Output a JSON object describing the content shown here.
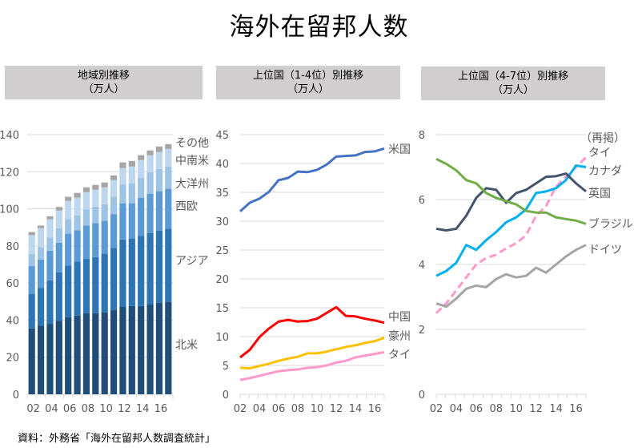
{
  "title": "海外在留邦人数",
  "source": "資料：外務省「海外在留邦人数調査統計」",
  "panels": [
    {
      "line1": "地域別推移",
      "line2": "（万人）"
    },
    {
      "line1": "上位国（1-4位）別推移",
      "line2": "（万人）"
    },
    {
      "line1": "上位国（4-7位）別推移",
      "line2": "（万人）"
    }
  ],
  "chart_data": [
    {
      "type": "bar",
      "stacked": true,
      "title": "地域別推移（万人）",
      "categories": [
        "02",
        "03",
        "04",
        "05",
        "06",
        "07",
        "08",
        "09",
        "10",
        "11",
        "12",
        "13",
        "14",
        "15",
        "16",
        "17"
      ],
      "xtick_labels": [
        "02",
        "04",
        "06",
        "08",
        "10",
        "12",
        "14",
        "16"
      ],
      "ylim": [
        0,
        140
      ],
      "yticks": [
        0,
        20,
        40,
        60,
        80,
        100,
        120,
        140
      ],
      "grid": true,
      "legend_placement": "right (direct labels)",
      "series": [
        {
          "name": "北米",
          "color": "#1f4e79",
          "values": [
            35.5,
            37.1,
            38.0,
            39.7,
            41.5,
            42.4,
            43.7,
            43.7,
            44.1,
            45.4,
            47.1,
            47.6,
            47.6,
            48.4,
            49.3,
            49.7
          ]
        },
        {
          "name": "アジア",
          "color": "#2e75b6",
          "values": [
            18.5,
            20.3,
            23.4,
            26.0,
            28.0,
            29.1,
            29.3,
            30.3,
            31.7,
            33.6,
            36.4,
            36.4,
            37.9,
            38.6,
            39.0,
            39.5
          ]
        },
        {
          "name": "西欧",
          "color": "#5b9bd5",
          "values": [
            15.1,
            15.3,
            16.0,
            16.0,
            17.1,
            16.9,
            18.0,
            18.3,
            17.8,
            18.0,
            19.5,
            19.0,
            20.5,
            21.2,
            21.2,
            21.6
          ]
        },
        {
          "name": "大洋州",
          "color": "#9dc3e6",
          "values": [
            6.6,
            6.6,
            7.1,
            7.9,
            7.8,
            8.1,
            8.6,
            8.9,
            8.9,
            9.5,
            10.0,
            10.8,
            10.8,
            11.6,
            12.0,
            12.0
          ]
        },
        {
          "name": "中南米",
          "color": "#bdd7ee",
          "values": [
            10.1,
            10.3,
            9.9,
            9.5,
            9.9,
            9.5,
            9.4,
            9.1,
            9.1,
            9.0,
            9.0,
            9.0,
            9.5,
            9.1,
            9.1,
            9.5
          ]
        },
        {
          "name": "その他",
          "color": "#a5a5a5",
          "values": [
            1.7,
            1.4,
            1.6,
            1.9,
            2.2,
            2.6,
            2.6,
            2.6,
            2.6,
            2.5,
            3.0,
            3.0,
            2.6,
            2.6,
            3.0,
            2.6
          ]
        }
      ]
    },
    {
      "type": "line",
      "title": "上位国（1-4位）別推移（万人）",
      "x": [
        "02",
        "03",
        "04",
        "05",
        "06",
        "07",
        "08",
        "09",
        "10",
        "11",
        "12",
        "13",
        "14",
        "15",
        "16",
        "17"
      ],
      "xtick_labels": [
        "02",
        "04",
        "06",
        "08",
        "10",
        "12",
        "14",
        "16"
      ],
      "ylim": [
        0,
        45
      ],
      "yticks": [
        0,
        5,
        10,
        15,
        20,
        25,
        30,
        35,
        40,
        45
      ],
      "grid": true,
      "legend_placement": "right (direct labels)",
      "series": [
        {
          "name": "米国",
          "color": "#4472c4",
          "dashed": false,
          "values": [
            31.7,
            33.2,
            33.9,
            35.1,
            37.1,
            37.5,
            38.6,
            38.5,
            38.9,
            39.8,
            41.2,
            41.3,
            41.4,
            42.0,
            42.1,
            42.6
          ]
        },
        {
          "name": "中国",
          "color": "#ff0000",
          "dashed": false,
          "values": [
            6.4,
            7.7,
            9.9,
            11.4,
            12.6,
            12.9,
            12.6,
            12.7,
            13.1,
            14.1,
            15.1,
            13.6,
            13.5,
            13.1,
            12.8,
            12.4
          ]
        },
        {
          "name": "豪州",
          "color": "#ffc000",
          "dashed": false,
          "values": [
            4.6,
            4.5,
            4.9,
            5.3,
            5.8,
            6.2,
            6.5,
            7.1,
            7.1,
            7.4,
            7.8,
            8.2,
            8.5,
            8.9,
            9.2,
            9.8
          ]
        },
        {
          "name": "タイ",
          "color": "#ff99cc",
          "dashed": false,
          "values": [
            2.5,
            2.8,
            3.2,
            3.6,
            4.0,
            4.2,
            4.3,
            4.6,
            4.7,
            5.0,
            5.5,
            5.8,
            6.4,
            6.7,
            7.0,
            7.3
          ]
        }
      ]
    },
    {
      "type": "line",
      "title": "上位国（4-7位）別推移（万人）",
      "x": [
        "02",
        "03",
        "04",
        "05",
        "06",
        "07",
        "08",
        "09",
        "10",
        "11",
        "12",
        "13",
        "14",
        "15",
        "16",
        "17"
      ],
      "xtick_labels": [
        "02",
        "04",
        "06",
        "08",
        "10",
        "12",
        "14",
        "16"
      ],
      "ylim": [
        0,
        8
      ],
      "yticks": [
        0,
        2,
        4,
        6,
        8
      ],
      "grid": true,
      "legend_placement": "right (direct labels)",
      "annotation": "（再掲）",
      "series": [
        {
          "name": "タイ",
          "label_prefix": "（再掲）",
          "color": "#ff99cc",
          "dashed": true,
          "values": [
            2.5,
            2.8,
            3.2,
            3.6,
            4.0,
            4.2,
            4.3,
            4.5,
            4.65,
            4.9,
            5.5,
            5.8,
            6.4,
            6.7,
            7.0,
            7.3
          ]
        },
        {
          "name": "カナダ",
          "color": "#00b0f0",
          "dashed": false,
          "values": [
            3.65,
            3.8,
            4.05,
            4.6,
            4.45,
            4.75,
            5.0,
            5.3,
            5.45,
            5.7,
            6.2,
            6.25,
            6.35,
            6.6,
            7.05,
            7.0
          ]
        },
        {
          "name": "英国",
          "color": "#44546a",
          "dashed": false,
          "values": [
            5.1,
            5.05,
            5.1,
            5.5,
            6.05,
            6.35,
            6.3,
            5.9,
            6.2,
            6.3,
            6.5,
            6.7,
            6.72,
            6.8,
            6.5,
            6.25
          ]
        },
        {
          "name": "ブラジル",
          "color": "#70ad47",
          "dashed": false,
          "values": [
            7.25,
            7.1,
            6.9,
            6.6,
            6.5,
            6.2,
            6.05,
            5.95,
            5.85,
            5.65,
            5.6,
            5.6,
            5.45,
            5.4,
            5.35,
            5.25
          ]
        },
        {
          "name": "ドイツ",
          "color": "#a5a5a5",
          "dashed": false,
          "values": [
            2.8,
            2.7,
            2.95,
            3.25,
            3.35,
            3.3,
            3.55,
            3.7,
            3.6,
            3.65,
            3.9,
            3.75,
            4.0,
            4.25,
            4.45,
            4.6
          ]
        }
      ]
    }
  ]
}
